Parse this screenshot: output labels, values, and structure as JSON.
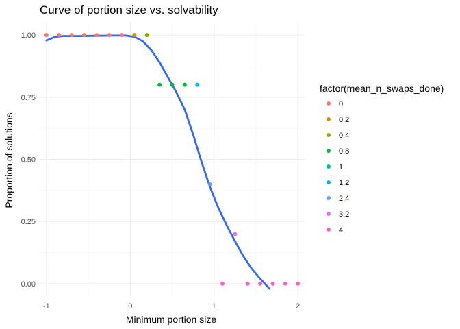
{
  "chart_data": {
    "type": "scatter",
    "title": "Curve of portion size vs. solvability",
    "xlabel": "Minimum portion size",
    "ylabel": "Proportion of solutions",
    "xlim": [
      -1.08,
      2.08
    ],
    "ylim": [
      -0.05,
      1.05
    ],
    "x_ticks": [
      -1,
      0,
      1,
      2
    ],
    "y_ticks": [
      0.0,
      0.25,
      0.5,
      0.75,
      1.0
    ],
    "x_tick_labels": [
      "-1",
      "0",
      "1",
      "2"
    ],
    "y_tick_labels": [
      "0.00",
      "0.25",
      "0.50",
      "0.75",
      "1.00"
    ],
    "grid": true,
    "legend": {
      "title": "factor(mean_n_swaps_done)",
      "placement": "right",
      "entries": [
        {
          "label": "0",
          "color": "#F8766D"
        },
        {
          "label": "0.2",
          "color": "#D39200"
        },
        {
          "label": "0.4",
          "color": "#93AA00"
        },
        {
          "label": "0.8",
          "color": "#00BA38"
        },
        {
          "label": "1",
          "color": "#00C19F"
        },
        {
          "label": "1.2",
          "color": "#00B9E3"
        },
        {
          "label": "2.4",
          "color": "#619CFF"
        },
        {
          "label": "3.2",
          "color": "#DB72FB"
        },
        {
          "label": "4",
          "color": "#FF61C3"
        }
      ]
    },
    "points": [
      {
        "x": -1.0,
        "y": 1.0,
        "group": "0"
      },
      {
        "x": -0.85,
        "y": 1.0,
        "group": "0"
      },
      {
        "x": -0.7,
        "y": 1.0,
        "group": "0"
      },
      {
        "x": -0.55,
        "y": 1.0,
        "group": "0"
      },
      {
        "x": -0.4,
        "y": 1.0,
        "group": "0"
      },
      {
        "x": -0.25,
        "y": 1.0,
        "group": "0"
      },
      {
        "x": -0.1,
        "y": 1.0,
        "group": "0"
      },
      {
        "x": 0.05,
        "y": 1.0,
        "group": "0.2"
      },
      {
        "x": 0.2,
        "y": 1.0,
        "group": "0.4"
      },
      {
        "x": 0.35,
        "y": 0.8,
        "group": "0.8"
      },
      {
        "x": 0.5,
        "y": 0.8,
        "group": "0.8"
      },
      {
        "x": 0.65,
        "y": 0.8,
        "group": "0.8"
      },
      {
        "x": 0.8,
        "y": 0.8,
        "group": "1.2"
      },
      {
        "x": 0.95,
        "y": 0.4,
        "group": "2.4"
      },
      {
        "x": 1.25,
        "y": 0.2,
        "group": "3.2"
      },
      {
        "x": 1.1,
        "y": 0.0,
        "group": "4"
      },
      {
        "x": 1.4,
        "y": 0.0,
        "group": "4"
      },
      {
        "x": 1.55,
        "y": 0.0,
        "group": "4"
      },
      {
        "x": 1.7,
        "y": 0.0,
        "group": "4"
      },
      {
        "x": 1.85,
        "y": 0.0,
        "group": "4"
      },
      {
        "x": 2.0,
        "y": 0.0,
        "group": "4"
      }
    ],
    "smooth_line": {
      "color": "#3366FF",
      "points": [
        [
          -1.0,
          0.978
        ],
        [
          -0.9,
          0.992
        ],
        [
          -0.8,
          0.996
        ],
        [
          -0.6,
          0.996
        ],
        [
          -0.4,
          0.997
        ],
        [
          -0.2,
          0.998
        ],
        [
          -0.05,
          0.998
        ],
        [
          0.05,
          0.993
        ],
        [
          0.15,
          0.975
        ],
        [
          0.25,
          0.94
        ],
        [
          0.35,
          0.89
        ],
        [
          0.45,
          0.83
        ],
        [
          0.55,
          0.77
        ],
        [
          0.65,
          0.7
        ],
        [
          0.75,
          0.6
        ],
        [
          0.85,
          0.49
        ],
        [
          0.95,
          0.39
        ],
        [
          1.05,
          0.305
        ],
        [
          1.15,
          0.235
        ],
        [
          1.25,
          0.17
        ],
        [
          1.35,
          0.11
        ],
        [
          1.45,
          0.06
        ],
        [
          1.55,
          0.02
        ],
        [
          1.62,
          -0.005
        ],
        [
          1.66,
          -0.02
        ]
      ]
    }
  }
}
